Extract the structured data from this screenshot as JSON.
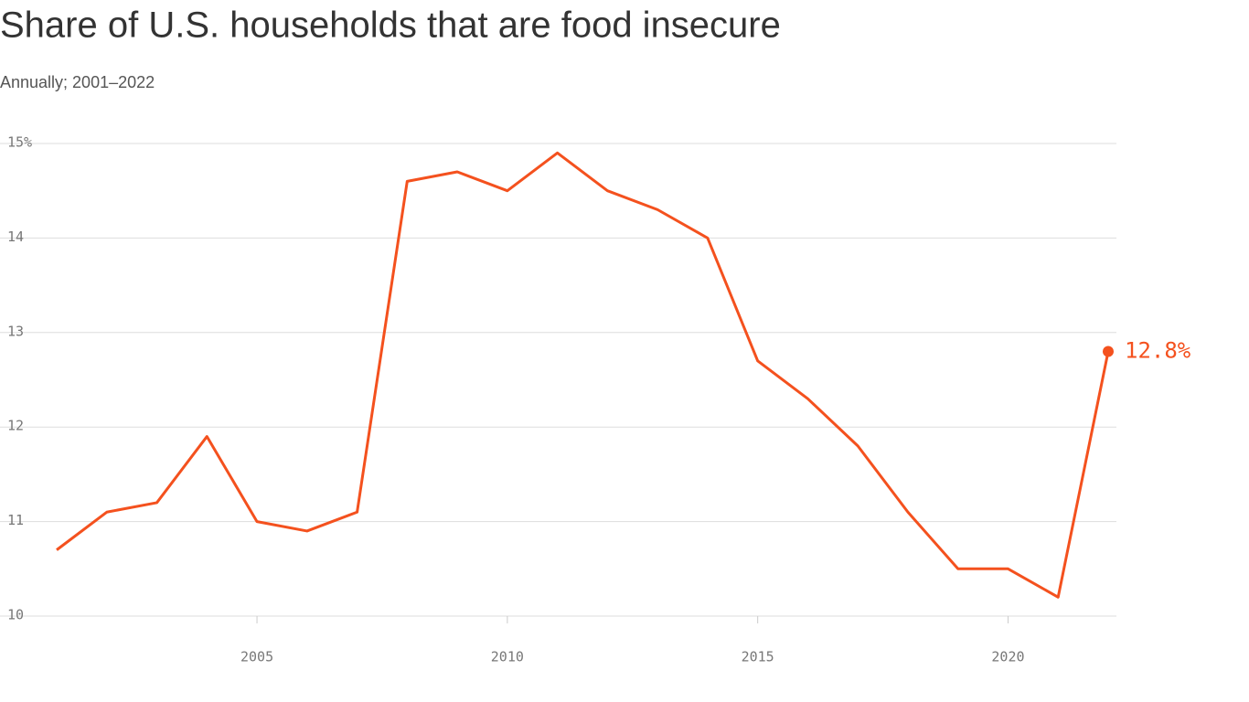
{
  "chart_data": {
    "type": "line",
    "title": "Share of U.S. households that are food insecure",
    "subtitle": "Annually; 2001–2022",
    "x": [
      2001,
      2002,
      2003,
      2004,
      2005,
      2006,
      2007,
      2008,
      2009,
      2010,
      2011,
      2012,
      2013,
      2014,
      2015,
      2016,
      2017,
      2018,
      2019,
      2020,
      2021,
      2022
    ],
    "values": [
      10.7,
      11.1,
      11.2,
      11.9,
      11.0,
      10.9,
      11.1,
      14.6,
      14.7,
      14.5,
      14.9,
      14.5,
      14.3,
      14.0,
      12.7,
      12.3,
      11.8,
      11.1,
      10.5,
      10.5,
      10.2,
      12.8
    ],
    "value_labels": [
      null,
      null,
      null,
      null,
      null,
      null,
      null,
      null,
      null,
      null,
      null,
      null,
      null,
      null,
      null,
      null,
      null,
      null,
      null,
      null,
      null,
      "12.8%"
    ],
    "color": "#f4511e",
    "xlim": [
      2001,
      2022
    ],
    "ylim": [
      10,
      15
    ],
    "xticks": [
      2005,
      2010,
      2015,
      2020
    ],
    "yticks": [
      {
        "value": 15,
        "label": "15%"
      },
      14,
      13,
      12,
      11,
      10
    ],
    "grid": true
  }
}
